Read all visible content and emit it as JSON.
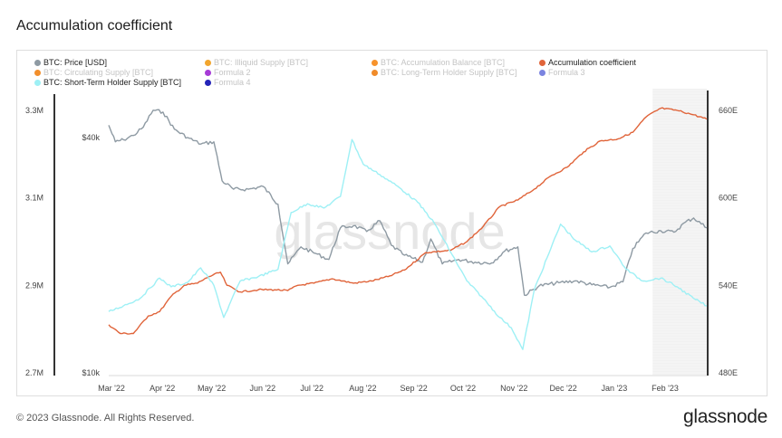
{
  "page": {
    "title": "Accumulation coefficient"
  },
  "legend": [
    {
      "label": "BTC: Price [USD]",
      "color": "#8e9aa3",
      "faded": false
    },
    {
      "label": "BTC: Illiquid Supply [BTC]",
      "color": "#f2a52e",
      "faded": true
    },
    {
      "label": "BTC: Accumulation Balance [BTC]",
      "color": "#f7932c",
      "faded": true
    },
    {
      "label": "Accumulation coefficient",
      "color": "#e0643a",
      "faded": false
    },
    {
      "label": "BTC: Circulating Supply [BTC]",
      "color": "#f28f2c",
      "faded": true
    },
    {
      "label": "Formula 2",
      "color": "#a63bd6",
      "faded": true
    },
    {
      "label": "BTC: Long-Term Holder Supply [BTC]",
      "color": "#f08b2a",
      "faded": true
    },
    {
      "label": "Formula 3",
      "color": "#7b84e0",
      "faded": true
    },
    {
      "label": "BTC: Short-Term Holder Supply [BTC]",
      "color": "#9ef0f5",
      "faded": false
    },
    {
      "label": "Formula 4",
      "color": "#2424b8",
      "faded": true
    }
  ],
  "footer": {
    "copyright": "© 2023 Glassnode. All Rights Reserved.",
    "brand": "glassnode"
  },
  "watermark": "glassnode",
  "chart_data": {
    "type": "line",
    "title": "Accumulation coefficient",
    "x_ticks": [
      "Mar '22",
      "Apr '22",
      "May '22",
      "Jun '22",
      "Jul '22",
      "Aug '22",
      "Sep '22",
      "Oct '22",
      "Nov '22",
      "Dec '22",
      "Jan '23",
      "Feb '23"
    ],
    "x_range": [
      "2022-03-01",
      "2023-02-28"
    ],
    "left_axis": {
      "ticks": [
        "3.3M",
        "3.1M",
        "2.9M",
        "2.7M"
      ],
      "range": [
        2700000,
        3300000
      ]
    },
    "price_axis": {
      "ticks": [
        "$40k",
        "$10k"
      ],
      "scale": "log"
    },
    "right_axis": {
      "ticks": [
        "660E",
        "600E",
        "540E",
        "480E"
      ],
      "range": [
        480,
        660
      ]
    },
    "highlight_region": {
      "from": "2023-01-26",
      "to": "2023-02-28"
    },
    "series": [
      {
        "name": "BTC: Price [USD]",
        "axis": "price",
        "color": "#8e9aa3",
        "points": [
          [
            "2022-03-01",
            43000
          ],
          [
            "2022-03-05",
            39000
          ],
          [
            "2022-03-10",
            39500
          ],
          [
            "2022-03-16",
            40500
          ],
          [
            "2022-03-22",
            42500
          ],
          [
            "2022-03-28",
            47000
          ],
          [
            "2022-04-03",
            46500
          ],
          [
            "2022-04-10",
            42000
          ],
          [
            "2022-04-18",
            40000
          ],
          [
            "2022-04-26",
            38500
          ],
          [
            "2022-05-04",
            39000
          ],
          [
            "2022-05-09",
            31000
          ],
          [
            "2022-05-16",
            29500
          ],
          [
            "2022-05-25",
            29500
          ],
          [
            "2022-06-03",
            30000
          ],
          [
            "2022-06-12",
            27000
          ],
          [
            "2022-06-18",
            19000
          ],
          [
            "2022-06-26",
            21000
          ],
          [
            "2022-07-05",
            20200
          ],
          [
            "2022-07-13",
            19500
          ],
          [
            "2022-07-20",
            23500
          ],
          [
            "2022-07-28",
            23800
          ],
          [
            "2022-08-05",
            23000
          ],
          [
            "2022-08-13",
            24500
          ],
          [
            "2022-08-20",
            21200
          ],
          [
            "2022-08-28",
            20000
          ],
          [
            "2022-09-08",
            19200
          ],
          [
            "2022-09-13",
            22000
          ],
          [
            "2022-09-20",
            19000
          ],
          [
            "2022-09-30",
            19500
          ],
          [
            "2022-10-10",
            19200
          ],
          [
            "2022-10-20",
            19100
          ],
          [
            "2022-10-28",
            20500
          ],
          [
            "2022-11-05",
            21000
          ],
          [
            "2022-11-09",
            15800
          ],
          [
            "2022-11-18",
            16700
          ],
          [
            "2022-11-30",
            17000
          ],
          [
            "2022-12-10",
            17200
          ],
          [
            "2022-12-20",
            16800
          ],
          [
            "2022-12-31",
            16550
          ],
          [
            "2023-01-08",
            17100
          ],
          [
            "2023-01-14",
            20800
          ],
          [
            "2023-01-22",
            22800
          ],
          [
            "2023-01-31",
            23100
          ],
          [
            "2023-02-08",
            22900
          ],
          [
            "2023-02-15",
            24300
          ],
          [
            "2023-02-20",
            24900
          ],
          [
            "2023-02-28",
            23500
          ]
        ]
      },
      {
        "name": "Accumulation coefficient",
        "axis": "left",
        "color": "#e0643a",
        "points": [
          [
            "2022-03-01",
            2810000
          ],
          [
            "2022-03-08",
            2790000
          ],
          [
            "2022-03-16",
            2790000
          ],
          [
            "2022-03-25",
            2830000
          ],
          [
            "2022-04-01",
            2840000
          ],
          [
            "2022-04-08",
            2875000
          ],
          [
            "2022-04-16",
            2900000
          ],
          [
            "2022-04-24",
            2905000
          ],
          [
            "2022-05-01",
            2920000
          ],
          [
            "2022-05-08",
            2930000
          ],
          [
            "2022-05-12",
            2900000
          ],
          [
            "2022-05-20",
            2885000
          ],
          [
            "2022-05-31",
            2890000
          ],
          [
            "2022-06-10",
            2890000
          ],
          [
            "2022-06-18",
            2888000
          ],
          [
            "2022-06-24",
            2900000
          ],
          [
            "2022-07-04",
            2905000
          ],
          [
            "2022-07-15",
            2915000
          ],
          [
            "2022-07-28",
            2905000
          ],
          [
            "2022-08-08",
            2910000
          ],
          [
            "2022-08-18",
            2920000
          ],
          [
            "2022-08-28",
            2935000
          ],
          [
            "2022-09-10",
            2975000
          ],
          [
            "2022-09-25",
            2980000
          ],
          [
            "2022-10-05",
            3000000
          ],
          [
            "2022-10-15",
            3035000
          ],
          [
            "2022-10-25",
            3080000
          ],
          [
            "2022-11-05",
            3095000
          ],
          [
            "2022-11-15",
            3120000
          ],
          [
            "2022-11-25",
            3150000
          ],
          [
            "2022-12-05",
            3170000
          ],
          [
            "2022-12-15",
            3205000
          ],
          [
            "2022-12-25",
            3230000
          ],
          [
            "2023-01-05",
            3235000
          ],
          [
            "2023-01-14",
            3250000
          ],
          [
            "2023-01-22",
            3285000
          ],
          [
            "2023-01-31",
            3305000
          ],
          [
            "2023-02-10",
            3300000
          ],
          [
            "2023-02-20",
            3290000
          ],
          [
            "2023-02-28",
            3280000
          ]
        ]
      },
      {
        "name": "BTC: Short-Term Holder Supply [BTC]",
        "axis": "right",
        "color": "#9ef0f5",
        "points": [
          [
            "2022-03-01",
            522
          ],
          [
            "2022-03-10",
            526
          ],
          [
            "2022-03-20",
            531
          ],
          [
            "2022-04-01",
            545
          ],
          [
            "2022-04-08",
            539
          ],
          [
            "2022-04-18",
            542
          ],
          [
            "2022-04-26",
            552
          ],
          [
            "2022-05-04",
            540
          ],
          [
            "2022-05-10",
            518
          ],
          [
            "2022-05-20",
            543
          ],
          [
            "2022-05-31",
            546
          ],
          [
            "2022-06-12",
            551
          ],
          [
            "2022-06-20",
            590
          ],
          [
            "2022-06-30",
            596
          ],
          [
            "2022-07-10",
            593
          ],
          [
            "2022-07-20",
            601
          ],
          [
            "2022-07-27",
            640
          ],
          [
            "2022-08-03",
            623
          ],
          [
            "2022-08-13",
            616
          ],
          [
            "2022-08-25",
            607
          ],
          [
            "2022-09-05",
            597
          ],
          [
            "2022-09-15",
            583
          ],
          [
            "2022-09-25",
            563
          ],
          [
            "2022-10-05",
            543
          ],
          [
            "2022-10-15",
            531
          ],
          [
            "2022-10-25",
            518
          ],
          [
            "2022-11-01",
            511
          ],
          [
            "2022-11-08",
            496
          ],
          [
            "2022-11-15",
            537
          ],
          [
            "2022-11-25",
            565
          ],
          [
            "2022-12-01",
            582
          ],
          [
            "2022-12-10",
            571
          ],
          [
            "2022-12-20",
            563
          ],
          [
            "2022-12-31",
            567
          ],
          [
            "2023-01-10",
            551
          ],
          [
            "2023-01-20",
            543
          ],
          [
            "2023-01-31",
            545
          ],
          [
            "2023-02-10",
            539
          ],
          [
            "2023-02-20",
            531
          ],
          [
            "2023-02-28",
            526
          ]
        ]
      }
    ]
  }
}
